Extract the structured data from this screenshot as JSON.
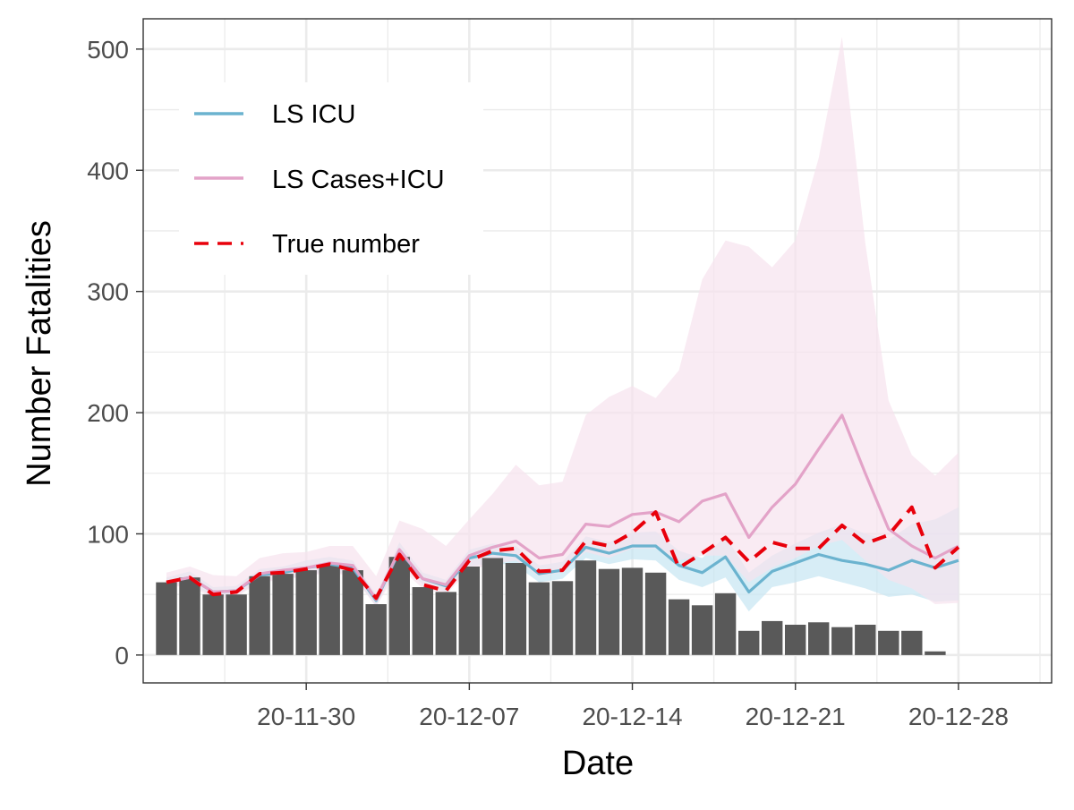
{
  "chart_data": {
    "type": "line",
    "xlabel": "Date",
    "ylabel": "Number Fatalities",
    "ylim": [
      -23,
      525
    ],
    "yticks": [
      0,
      100,
      200,
      300,
      400,
      500
    ],
    "x_tick_labels": [
      "20-11-30",
      "20-12-07",
      "20-12-14",
      "20-12-21",
      "20-12-28"
    ],
    "x_tick_dates": [
      "2020-11-30",
      "2020-12-07",
      "2020-12-14",
      "2020-12-21",
      "2020-12-28"
    ],
    "xlim": [
      "2020-11-23",
      "2021-01-01"
    ],
    "grid": true,
    "legend_position": "top-left",
    "x": [
      "2020-11-24",
      "2020-11-25",
      "2020-11-26",
      "2020-11-27",
      "2020-11-28",
      "2020-11-29",
      "2020-11-30",
      "2020-12-01",
      "2020-12-02",
      "2020-12-03",
      "2020-12-04",
      "2020-12-05",
      "2020-12-06",
      "2020-12-07",
      "2020-12-08",
      "2020-12-09",
      "2020-12-10",
      "2020-12-11",
      "2020-12-12",
      "2020-12-13",
      "2020-12-14",
      "2020-12-15",
      "2020-12-16",
      "2020-12-17",
      "2020-12-18",
      "2020-12-19",
      "2020-12-20",
      "2020-12-21",
      "2020-12-22",
      "2020-12-23",
      "2020-12-24",
      "2020-12-25",
      "2020-12-26",
      "2020-12-27",
      "2020-12-28",
      "2020-12-29",
      "2020-12-30"
    ],
    "bars": {
      "color": "#595959",
      "values": [
        60,
        64,
        50,
        50,
        65,
        67,
        70,
        75,
        70,
        42,
        81,
        56,
        52,
        73,
        80,
        76,
        60,
        61,
        78,
        71,
        72,
        68,
        46,
        41,
        51,
        20,
        28,
        25,
        27,
        23,
        25,
        20,
        20,
        3,
        null,
        null,
        null
      ]
    },
    "series": [
      {
        "name": "LS ICU",
        "color": "#6bb3cf",
        "band_color": "#c6e6f2",
        "dash": false,
        "values": [
          60,
          64,
          52,
          53,
          66,
          68,
          72,
          75,
          72,
          45,
          86,
          63,
          57,
          80,
          84,
          82,
          67,
          70,
          89,
          84,
          90,
          90,
          74,
          68,
          81,
          52,
          69,
          76,
          83,
          78,
          75,
          70,
          78,
          72,
          78,
          null,
          null
        ],
        "lower": [
          56,
          59,
          48,
          49,
          61,
          63,
          66,
          69,
          66,
          40,
          78,
          58,
          52,
          73,
          76,
          74,
          60,
          63,
          80,
          75,
          79,
          78,
          62,
          56,
          64,
          36,
          56,
          60,
          65,
          60,
          55,
          48,
          50,
          44,
          45,
          null,
          null
        ],
        "upper": [
          64,
          69,
          56,
          57,
          71,
          73,
          78,
          81,
          78,
          50,
          93,
          68,
          62,
          87,
          92,
          90,
          74,
          77,
          98,
          93,
          101,
          102,
          86,
          80,
          98,
          68,
          82,
          92,
          101,
          108,
          100,
          95,
          108,
          112,
          122,
          null,
          null
        ]
      },
      {
        "name": "LS Cases+ICU",
        "color": "#e3a3c8",
        "band_color": "#f7e3ee",
        "dash": false,
        "values": [
          60,
          64,
          52,
          53,
          67,
          70,
          72,
          76,
          74,
          46,
          87,
          63,
          58,
          82,
          89,
          94,
          80,
          83,
          108,
          106,
          116,
          118,
          110,
          127,
          133,
          97,
          122,
          141,
          170,
          198,
          150,
          104,
          90,
          80,
          90,
          null,
          null
        ],
        "lower": [
          55,
          58,
          46,
          48,
          60,
          62,
          65,
          68,
          65,
          40,
          72,
          55,
          50,
          70,
          75,
          78,
          65,
          68,
          85,
          80,
          88,
          88,
          78,
          82,
          82,
          60,
          72,
          80,
          90,
          95,
          78,
          62,
          55,
          42,
          43,
          null,
          null
        ],
        "upper": [
          68,
          73,
          66,
          65,
          80,
          84,
          85,
          90,
          90,
          65,
          111,
          104,
          90,
          112,
          133,
          157,
          140,
          143,
          198,
          213,
          222,
          212,
          235,
          310,
          342,
          337,
          320,
          342,
          410,
          510,
          340,
          210,
          165,
          148,
          167,
          null,
          null
        ]
      },
      {
        "name": "True number",
        "color": "#e8000b",
        "dash": true,
        "values": [
          60,
          64,
          50,
          52,
          67,
          68,
          71,
          75,
          70,
          47,
          83,
          58,
          53,
          78,
          86,
          88,
          69,
          70,
          94,
          90,
          101,
          118,
          72,
          84,
          97,
          77,
          93,
          88,
          88,
          107,
          92,
          99,
          122,
          72,
          89,
          null,
          null
        ]
      }
    ]
  }
}
